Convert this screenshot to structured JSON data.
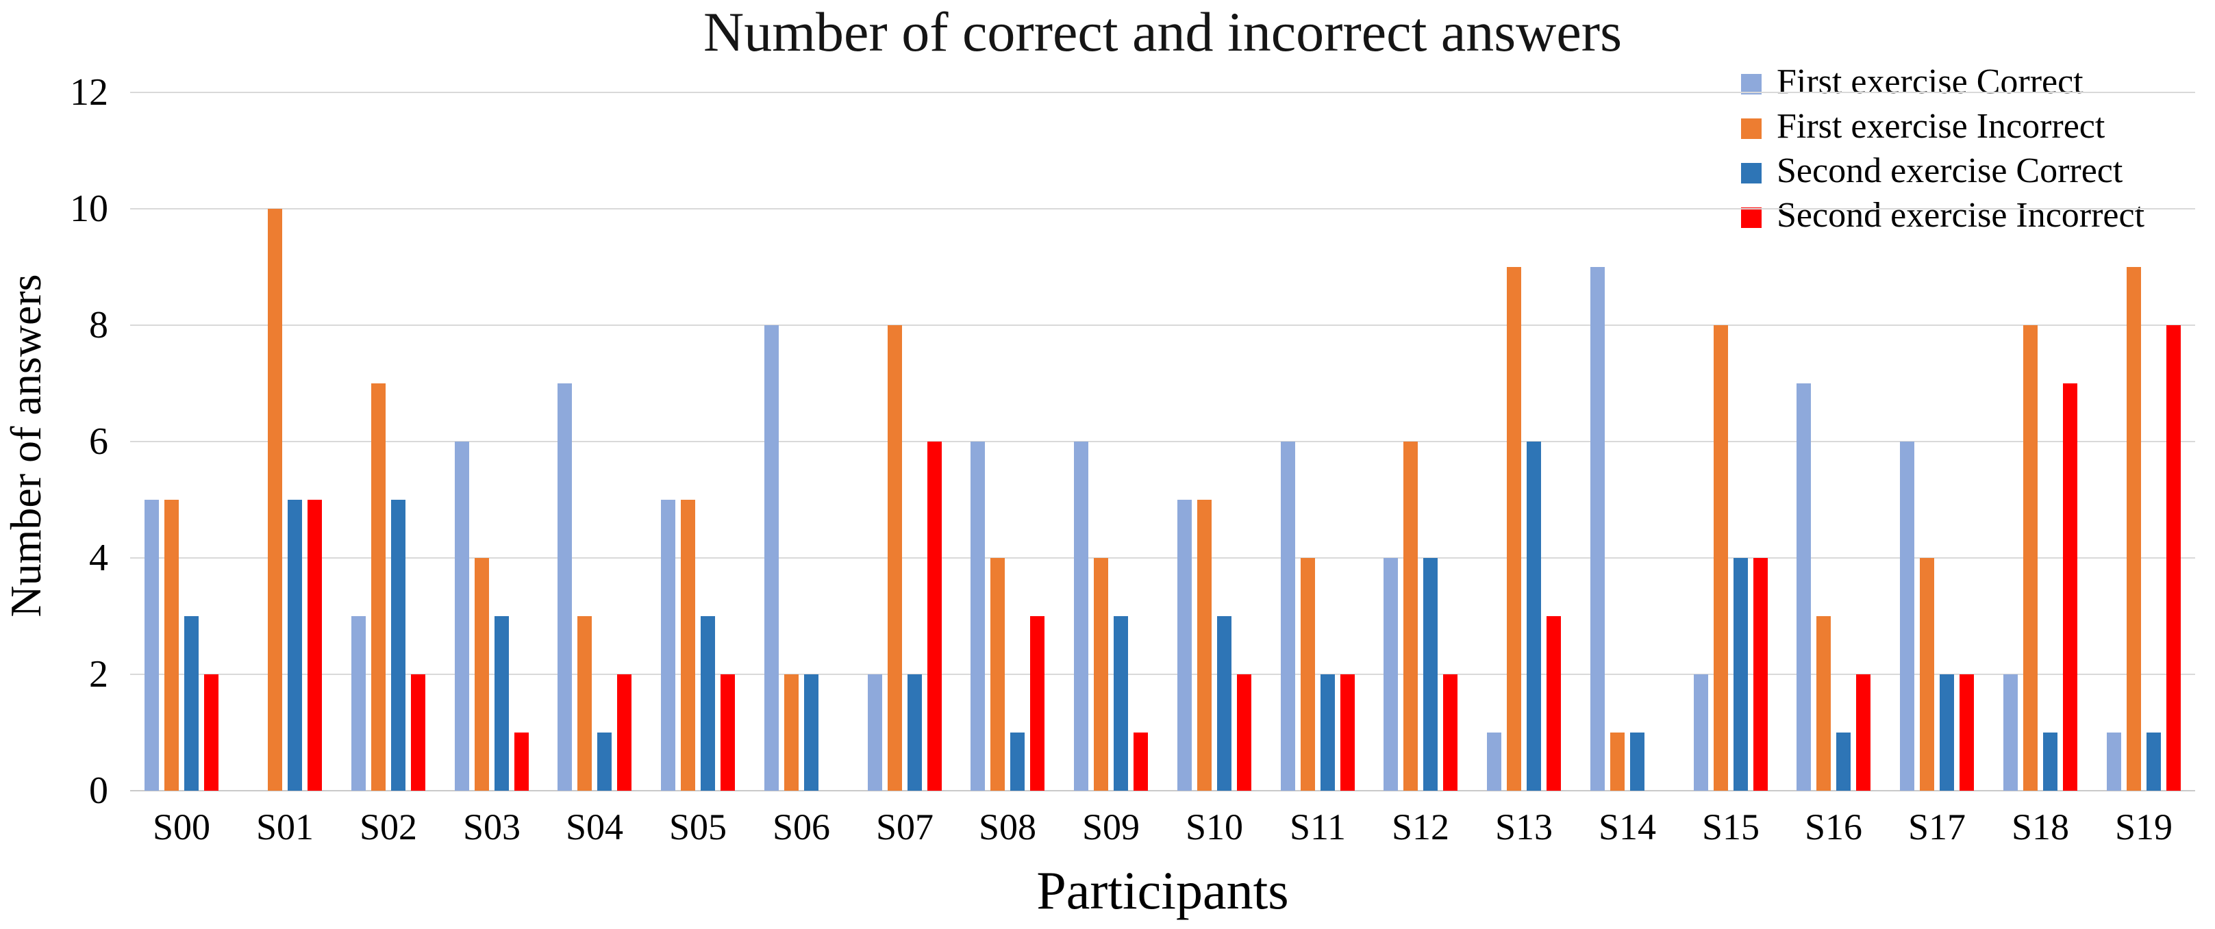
{
  "chart_data": {
    "type": "bar",
    "title": "Number of correct and incorrect answers",
    "xlabel": "Participants",
    "ylabel": "Number of answers",
    "categories": [
      "S00",
      "S01",
      "S02",
      "S03",
      "S04",
      "S05",
      "S06",
      "S07",
      "S08",
      "S09",
      "S10",
      "S11",
      "S12",
      "S13",
      "S14",
      "S15",
      "S16",
      "S17",
      "S18",
      "S19"
    ],
    "series": [
      {
        "name": "First exercise Correct",
        "color": "#8EA9DB",
        "values": [
          5,
          0,
          3,
          6,
          7,
          5,
          8,
          2,
          6,
          6,
          5,
          6,
          4,
          1,
          9,
          2,
          7,
          6,
          2,
          1
        ]
      },
      {
        "name": "First exercise Incorrect",
        "color": "#ED7D31",
        "values": [
          5,
          10,
          7,
          4,
          3,
          5,
          2,
          8,
          4,
          4,
          5,
          4,
          6,
          9,
          1,
          8,
          3,
          4,
          8,
          9
        ]
      },
      {
        "name": "Second exercise Correct",
        "color": "#2E75B6",
        "values": [
          3,
          5,
          5,
          3,
          1,
          3,
          2,
          2,
          1,
          3,
          3,
          2,
          4,
          6,
          1,
          4,
          1,
          2,
          1,
          1
        ]
      },
      {
        "name": "Second exercise Incorrect",
        "color": "#FF0000",
        "values": [
          2,
          5,
          2,
          1,
          2,
          2,
          0,
          6,
          3,
          1,
          2,
          2,
          2,
          3,
          0,
          4,
          2,
          2,
          7,
          8
        ]
      }
    ],
    "ylim": [
      0,
      12
    ],
    "yticks": [
      0,
      2,
      4,
      6,
      8,
      10,
      12
    ],
    "grid": "horizontal",
    "gridline_color": "#D9D9D9",
    "legend_position": "top-right",
    "background_color": "#FFFFFF",
    "text_color": "#000000"
  }
}
